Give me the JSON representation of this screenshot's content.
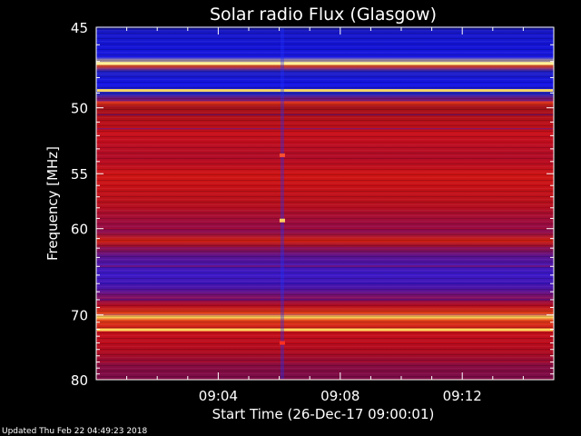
{
  "chart_data": {
    "type": "heatmap",
    "title": "Solar radio Flux (Glasgow)",
    "xlabel": "Start Time (26-Dec-17 09:00:01)",
    "ylabel": "Frequency [MHz]",
    "x_ticks": [
      "09:04",
      "09:08",
      "09:12"
    ],
    "x_tick_minutes": [
      4,
      8,
      12
    ],
    "xlim_minutes": [
      0,
      15
    ],
    "y_ticks": [
      45,
      50,
      55,
      60,
      70,
      80
    ],
    "ylim": [
      45,
      80
    ],
    "y_scale": "reciprocal",
    "grid": false,
    "colors": {
      "background": "#000000",
      "low": "#1010c8",
      "mid": "#c80a14",
      "high": "#ffe060"
    },
    "frequency_bands": [
      {
        "mhz": 45,
        "level": "low"
      },
      {
        "mhz": 46,
        "level": "low"
      },
      {
        "mhz": 47,
        "level": "low"
      },
      {
        "mhz": 48,
        "level": "low"
      },
      {
        "mhz": 48.8,
        "level": "high"
      },
      {
        "mhz": 49.5,
        "level": "low"
      },
      {
        "mhz": 50.5,
        "level": "low"
      },
      {
        "mhz": 51.5,
        "level": "low"
      },
      {
        "mhz": 52.5,
        "level": "mid"
      },
      {
        "mhz": 54,
        "level": "mid"
      },
      {
        "mhz": 56,
        "level": "mid"
      },
      {
        "mhz": 58,
        "level": "mid"
      },
      {
        "mhz": 60,
        "level": "mid"
      },
      {
        "mhz": 62,
        "level": "mid-low"
      },
      {
        "mhz": 64,
        "level": "mid"
      },
      {
        "mhz": 66,
        "level": "low"
      },
      {
        "mhz": 68,
        "level": "low"
      },
      {
        "mhz": 70,
        "level": "mid-low"
      },
      {
        "mhz": 72,
        "level": "high"
      },
      {
        "mhz": 74,
        "level": "mid"
      },
      {
        "mhz": 77,
        "level": "mid"
      },
      {
        "mhz": 80,
        "level": "mid"
      }
    ],
    "time_features": [
      {
        "minute": 6.1,
        "note": "vertical interference line"
      }
    ]
  },
  "footer": {
    "updated": "Updated Thu Feb 22 04:49:23 2018"
  }
}
